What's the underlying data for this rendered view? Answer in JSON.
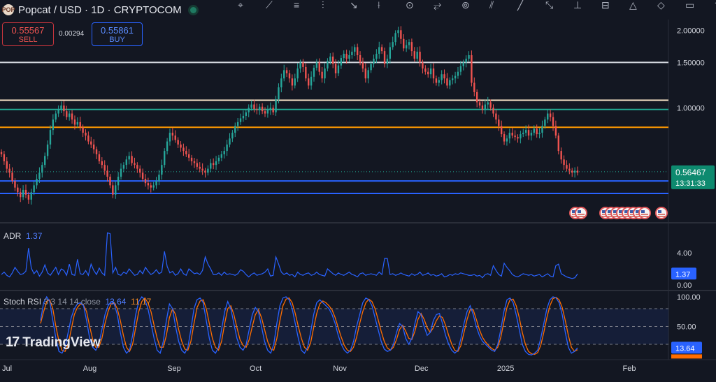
{
  "header": {
    "logo_text": "POP",
    "title": "Popcat / USD · 1D · CRYPTOCOM",
    "toolbar_icons": [
      "cursor-icon",
      "trend-line-icon",
      "fib-icon",
      "brush-icon",
      "text-icon",
      "measure-icon",
      "projection-icon",
      "pattern-icon",
      "cycle-icon",
      "channel-icon",
      "ray-icon",
      "extended-line-icon",
      "vertical-line-icon",
      "date-range-icon",
      "triangle-icon",
      "magnet-icon",
      "shape-icon",
      "arrow-icon"
    ]
  },
  "trade": {
    "sell_price": "0.55567",
    "sell_label": "SELL",
    "spread": "0.00294",
    "buy_price": "0.55861",
    "buy_label": "BUY"
  },
  "chart_data": {
    "type": "candlestick",
    "x_axis_labels": [
      "Jul",
      "Aug",
      "Sep",
      "Oct",
      "Nov",
      "Dec",
      "2025",
      "Feb"
    ],
    "price_axis": {
      "scale": "log",
      "ticks": [
        "2.00000",
        "1.50000",
        "1.00000"
      ],
      "range": [
        0.36,
        2.2
      ]
    },
    "last_price": "0.56467",
    "countdown": "13:31:33",
    "horizontal_levels": [
      {
        "price": 1.5,
        "color": "#d1d4dc"
      },
      {
        "price": 1.07,
        "color": "#fbe5c8"
      },
      {
        "price": 0.985,
        "color": "#22ab94"
      },
      {
        "price": 0.84,
        "color": "#ff9800"
      },
      {
        "price": 0.52,
        "color": "#2962ff"
      },
      {
        "price": 0.465,
        "color": "#2962ff"
      }
    ],
    "closes": [
      0.66,
      0.62,
      0.58,
      0.56,
      0.52,
      0.49,
      0.47,
      0.45,
      0.48,
      0.46,
      0.44,
      0.47,
      0.5,
      0.53,
      0.56,
      0.6,
      0.65,
      0.72,
      0.82,
      0.9,
      0.95,
      0.99,
      1.02,
      0.97,
      0.92,
      0.95,
      0.9,
      0.86,
      0.88,
      0.84,
      0.8,
      0.78,
      0.74,
      0.72,
      0.69,
      0.66,
      0.62,
      0.6,
      0.57,
      0.54,
      0.5,
      0.46,
      0.5,
      0.54,
      0.58,
      0.6,
      0.63,
      0.65,
      0.61,
      0.6,
      0.58,
      0.56,
      0.53,
      0.51,
      0.5,
      0.49,
      0.5,
      0.52,
      0.55,
      0.6,
      0.68,
      0.74,
      0.8,
      0.78,
      0.75,
      0.72,
      0.7,
      0.68,
      0.66,
      0.64,
      0.62,
      0.61,
      0.59,
      0.58,
      0.57,
      0.56,
      0.58,
      0.61,
      0.6,
      0.62,
      0.64,
      0.66,
      0.68,
      0.72,
      0.76,
      0.8,
      0.85,
      0.88,
      0.91,
      0.93,
      0.96,
      1,
      1.03,
      0.99,
      0.98,
      1.01,
      0.97,
      0.95,
      0.98,
      1,
      0.96,
      1.08,
      1.2,
      1.3,
      1.4,
      1.36,
      1.3,
      1.22,
      1.3,
      1.42,
      1.5,
      1.44,
      1.3,
      1.22,
      1.32,
      1.43,
      1.5,
      1.38,
      1.3,
      1.42,
      1.52,
      1.58,
      1.48,
      1.36,
      1.46,
      1.56,
      1.62,
      1.55,
      1.6,
      1.65,
      1.72,
      1.6,
      1.5,
      1.42,
      1.3,
      1.4,
      1.48,
      1.55,
      1.62,
      1.72,
      1.66,
      1.48,
      1.55,
      1.72,
      1.8,
      1.95,
      2,
      1.85,
      1.7,
      1.75,
      1.8,
      1.66,
      1.55,
      1.65,
      1.5,
      1.42,
      1.38,
      1.35,
      1.42,
      1.3,
      1.25,
      1.28,
      1.35,
      1.3,
      1.22,
      1.28,
      1.3,
      1.33,
      1.38,
      1.45,
      1.5,
      1.55,
      1.6,
      1.25,
      1.15,
      1.05,
      1.02,
      0.98,
      1.03,
      1.05,
      1,
      0.95,
      0.9,
      0.85,
      0.79,
      0.74,
      0.76,
      0.8,
      0.78,
      0.77,
      0.76,
      0.79,
      0.8,
      0.82,
      0.78,
      0.8,
      0.83,
      0.79,
      0.8,
      0.85,
      0.9,
      0.95,
      0.92,
      0.85,
      0.78,
      0.68,
      0.63,
      0.6,
      0.58,
      0.57,
      0.56,
      0.57,
      0.56
    ]
  },
  "adr": {
    "label": "ADR",
    "value": "1.37",
    "ticks": [
      "4.00",
      "0.00"
    ],
    "values": [
      1.3,
      1.6,
      1.2,
      1.0,
      1.5,
      2.2,
      1.7,
      1.3,
      1.4,
      1.7,
      4.6,
      2.1,
      1.4,
      1.8,
      1.1,
      1.6,
      2.5,
      1.5,
      1.2,
      1.7,
      2.2,
      1.3,
      2.0,
      1.8,
      1.2,
      2.6,
      1.3,
      1.2,
      3.2,
      1.4,
      1.3,
      1.8,
      1.2,
      2.6,
      1.8,
      1.3,
      2.1,
      1.5,
      1.2,
      6.5,
      6.4,
      1.5,
      2.2,
      1.3,
      1.2,
      1.6,
      1.4,
      2.0,
      1.6,
      1.2,
      1.3,
      1.8,
      1.4,
      2.2,
      1.7,
      1.3,
      1.5,
      1.9,
      1.4,
      1.6,
      4.2,
      2.3,
      1.5,
      1.7,
      1.2,
      1.4,
      2.0,
      1.4,
      1.2,
      2.0,
      1.7,
      1.4,
      1.5,
      1.3,
      1.8,
      3.5,
      2.6,
      2.0,
      1.3,
      1.3,
      1.5,
      1.2,
      1.6,
      1.3,
      1.4,
      1.3,
      1.2,
      1.4,
      1.9,
      1.7,
      1.3,
      1.0,
      1.3,
      1.5,
      1.2,
      1.3,
      1.4,
      1.6,
      2.0,
      1.1,
      1.2,
      3.5,
      2.6,
      1.6,
      1.3,
      1.5,
      1.2,
      1.3,
      1.0,
      1.6,
      1.3,
      1.2,
      1.4,
      1.5,
      1.2,
      1.3,
      1.6,
      1.3,
      1.2,
      1.1,
      2.0,
      1.7,
      1.4,
      1.2,
      1.5,
      1.3,
      1.2,
      1.4,
      1.6,
      1.3,
      1.2,
      1.0,
      1.4,
      1.5,
      1.2,
      1.3,
      1.4,
      1.3,
      1.2,
      1.6,
      1.3,
      3.3,
      3.3,
      1.3,
      1.4,
      1.2,
      1.3,
      1.5,
      1.3,
      1.2,
      1.1,
      1.4,
      1.2,
      1.3,
      1.6,
      1.2,
      1.3,
      1.5,
      1.2,
      1.3,
      1.1,
      1.2,
      1.4,
      1.0,
      1.1,
      1.3,
      1.2,
      1.4,
      1.3,
      1.5,
      1.4,
      1.3,
      1.2,
      1.2,
      1.3,
      1.1,
      1.2,
      0.9,
      1.3,
      1.4,
      1.2,
      2.4,
      1.8,
      1.3,
      1.1,
      2.7,
      2.2,
      1.8,
      1.3,
      1.1,
      1.0,
      1.2,
      1.4,
      1.3,
      1.2,
      1.3,
      1.1,
      1.2,
      1.3,
      1.0,
      1.2,
      1.4,
      1.1,
      1.0,
      2.4,
      2.6,
      1.4,
      1.2,
      1.0,
      0.9,
      0.8,
      0.9,
      1.37
    ]
  },
  "stoch_rsi": {
    "label": "Stoch RSI",
    "params": "3 3 14 14 close",
    "k_value": "13.64",
    "d_value": "11.17",
    "ticks": [
      "100.00",
      "50.00"
    ],
    "k": [
      60,
      90,
      100,
      92,
      60,
      30,
      8,
      5,
      15,
      40,
      65,
      80,
      88,
      90,
      85,
      60,
      30,
      15,
      10,
      20,
      45,
      70,
      85,
      92,
      88,
      70,
      40,
      15,
      5,
      10,
      35,
      70,
      92,
      100,
      95,
      80,
      55,
      30,
      10,
      5,
      25,
      60,
      88,
      80,
      50,
      25,
      10,
      5,
      15,
      45,
      80,
      95,
      98,
      90,
      60,
      30,
      10,
      5,
      15,
      45,
      75,
      92,
      80,
      55,
      30,
      15,
      10,
      20,
      45,
      70,
      82,
      75,
      50,
      25,
      10,
      5,
      20,
      55,
      85,
      98,
      100,
      95,
      80,
      55,
      30,
      10,
      5,
      15,
      40,
      70,
      90,
      95,
      90,
      85,
      80,
      70,
      55,
      35,
      20,
      10,
      5,
      10,
      25,
      50,
      70,
      90,
      98,
      95,
      85,
      65,
      45,
      25,
      12,
      8,
      10,
      20,
      40,
      55,
      50,
      30,
      20,
      30,
      55,
      75,
      70,
      50,
      35,
      40,
      60,
      70,
      72,
      55,
      35,
      20,
      10,
      5,
      10,
      30,
      55,
      75,
      85,
      70,
      50,
      35,
      25,
      20,
      15,
      10,
      8,
      20,
      45,
      75,
      95,
      98,
      90,
      70,
      45,
      20,
      8,
      3,
      2,
      5,
      10,
      30,
      55,
      80,
      95,
      100,
      98,
      90,
      70,
      40,
      15,
      5,
      8,
      14
    ],
    "d": [
      55,
      75,
      92,
      95,
      80,
      50,
      25,
      10,
      8,
      20,
      45,
      70,
      82,
      88,
      86,
      75,
      50,
      28,
      15,
      15,
      30,
      55,
      75,
      88,
      90,
      80,
      60,
      35,
      15,
      8,
      20,
      48,
      75,
      92,
      98,
      90,
      75,
      52,
      30,
      15,
      15,
      35,
      65,
      80,
      70,
      45,
      25,
      12,
      10,
      25,
      55,
      82,
      93,
      95,
      80,
      55,
      30,
      15,
      10,
      25,
      55,
      80,
      85,
      70,
      48,
      28,
      18,
      15,
      28,
      50,
      70,
      78,
      65,
      45,
      25,
      12,
      10,
      30,
      60,
      85,
      96,
      98,
      90,
      72,
      50,
      30,
      15,
      10,
      22,
      48,
      72,
      88,
      93,
      90,
      85,
      78,
      65,
      48,
      32,
      18,
      10,
      8,
      15,
      32,
      55,
      75,
      90,
      96,
      92,
      80,
      62,
      42,
      25,
      14,
      10,
      15,
      28,
      45,
      52,
      42,
      30,
      28,
      42,
      62,
      72,
      62,
      48,
      40,
      48,
      60,
      68,
      65,
      52,
      35,
      20,
      10,
      8,
      18,
      40,
      62,
      78,
      78,
      62,
      45,
      32,
      24,
      18,
      13,
      10,
      15,
      32,
      58,
      82,
      95,
      96,
      85,
      65,
      40,
      20,
      8,
      4,
      3,
      6,
      18,
      40,
      65,
      85,
      97,
      99,
      95,
      82,
      60,
      35,
      15,
      8,
      11
    ]
  }
}
